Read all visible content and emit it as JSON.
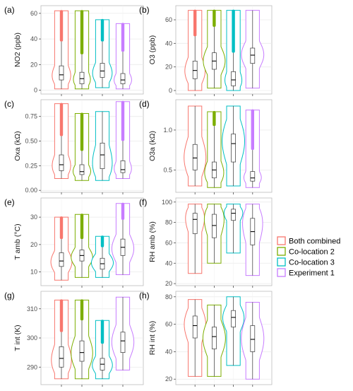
{
  "chart_data": {
    "type": "violin",
    "groups": [
      "Both combined",
      "Co-location 2",
      "Co-location 3",
      "Experiment 1"
    ],
    "colors": [
      "#f8766d",
      "#7cae00",
      "#00bfc4",
      "#c77cff"
    ],
    "legend": {
      "position": "right",
      "entries": [
        {
          "label": "Both combined",
          "color": "#f8766d"
        },
        {
          "label": "Co-location 2",
          "color": "#7cae00"
        },
        {
          "label": "Co-location 3",
          "color": "#00bfc4"
        },
        {
          "label": "Experiment 1",
          "color": "#c77cff"
        }
      ]
    },
    "panels": [
      {
        "id": "a",
        "label": "(a)",
        "ylabel": "NO2 (ppb)",
        "ylim": [
          -3,
          66
        ],
        "yticks": [
          "0",
          "20",
          "40",
          "60"
        ],
        "stats": [
          {
            "min": 1,
            "q1": 8,
            "median": 12,
            "q3": 19,
            "max": 62,
            "mode": 9,
            "outlier_from": 38
          },
          {
            "min": 1,
            "q1": 5,
            "median": 9,
            "q3": 14,
            "max": 62,
            "mode": 6,
            "outlier_from": 28
          },
          {
            "min": 2,
            "q1": 10,
            "median": 15,
            "q3": 21,
            "max": 55,
            "mode": 11,
            "outlier_from": 38
          },
          {
            "min": 1,
            "q1": 5,
            "median": 8,
            "q3": 13,
            "max": 52,
            "mode": 6,
            "outlier_from": 30
          }
        ]
      },
      {
        "id": "b",
        "label": "(b)",
        "ylabel": "O3 (ppb)",
        "ylim": [
          -3,
          72
        ],
        "yticks": [
          "0",
          "20",
          "40",
          "60"
        ],
        "stats": [
          {
            "min": 0,
            "q1": 10,
            "median": 17,
            "q3": 25,
            "max": 68,
            "mode": 14,
            "outlier_from": 46
          },
          {
            "min": 2,
            "q1": 18,
            "median": 25,
            "q3": 32,
            "max": 68,
            "mode": 24,
            "outlier_from": 54
          },
          {
            "min": 0,
            "q1": 4,
            "median": 9,
            "q3": 16,
            "max": 68,
            "mode": 5,
            "outlier_from": 32
          },
          {
            "min": 2,
            "q1": 23,
            "median": 30,
            "q3": 36,
            "max": 68,
            "mode": 30,
            "outlier_from": null
          }
        ]
      },
      {
        "id": "c",
        "label": "(c)",
        "ylabel": "Oxa (kΩ)",
        "ylim": [
          -0.02,
          0.92
        ],
        "yticks": [
          "0.00",
          "0.25",
          "0.50",
          "0.75"
        ],
        "stats": [
          {
            "min": 0.12,
            "q1": 0.2,
            "median": 0.26,
            "q3": 0.36,
            "max": 0.88,
            "mode": 0.21,
            "outlier_from": 0.55
          },
          {
            "min": 0.1,
            "q1": 0.16,
            "median": 0.19,
            "q3": 0.26,
            "max": 0.78,
            "mode": 0.17,
            "outlier_from": 0.4
          },
          {
            "min": 0.1,
            "q1": 0.22,
            "median": 0.36,
            "q3": 0.48,
            "max": 0.8,
            "mode": 0.2,
            "outlier_from": null
          },
          {
            "min": 0.12,
            "q1": 0.18,
            "median": 0.21,
            "q3": 0.3,
            "max": 0.9,
            "mode": 0.19,
            "outlier_from": 0.5
          }
        ]
      },
      {
        "id": "d",
        "label": "(d)",
        "ylabel": "O3a (kΩ)",
        "ylim": [
          0.22,
          1.38
        ],
        "yticks": [
          "0.5",
          "1.0"
        ],
        "stats": [
          {
            "min": 0.3,
            "q1": 0.5,
            "median": 0.65,
            "q3": 0.82,
            "max": 1.3,
            "mode": 0.62,
            "outlier_from": null
          },
          {
            "min": 0.28,
            "q1": 0.4,
            "median": 0.5,
            "q3": 0.6,
            "max": 1.23,
            "mode": 0.42,
            "outlier_from": 1.05
          },
          {
            "min": 0.3,
            "q1": 0.6,
            "median": 0.83,
            "q3": 0.95,
            "max": 1.3,
            "mode": 0.88,
            "outlier_from": null
          },
          {
            "min": 0.28,
            "q1": 0.36,
            "median": 0.4,
            "q3": 0.48,
            "max": 1.25,
            "mode": 0.38,
            "outlier_from": 0.75
          }
        ]
      },
      {
        "id": "e",
        "label": "(e)",
        "ylabel": "T amb (°C)",
        "ylim": [
          5,
          37
        ],
        "yticks": [
          "10",
          "20",
          "30"
        ],
        "stats": [
          {
            "min": 7,
            "q1": 12,
            "median": 14,
            "q3": 17,
            "max": 30,
            "mode": 13,
            "outlier_from": 22
          },
          {
            "min": 8,
            "q1": 14,
            "median": 16,
            "q3": 18,
            "max": 31,
            "mode": 15,
            "outlier_from": 22
          },
          {
            "min": 8,
            "q1": 11,
            "median": 13,
            "q3": 15,
            "max": 23,
            "mode": 13,
            "outlier_from": 19
          },
          {
            "min": 9,
            "q1": 16,
            "median": 19,
            "q3": 22,
            "max": 35,
            "mode": 18,
            "outlier_from": 29
          }
        ]
      },
      {
        "id": "f",
        "label": "(f)",
        "ylabel": "RH amb (%)",
        "ylim": [
          18,
          104
        ],
        "yticks": [
          "20",
          "40",
          "60",
          "80",
          "100"
        ],
        "stats": [
          {
            "min": 30,
            "q1": 69,
            "median": 83,
            "q3": 89,
            "max": 98,
            "mode": 90,
            "outlier_from": null
          },
          {
            "min": 40,
            "q1": 65,
            "median": 77,
            "q3": 88,
            "max": 98,
            "mode": 90,
            "outlier_from": null
          },
          {
            "min": 50,
            "q1": 82,
            "median": 89,
            "q3": 93,
            "max": 98,
            "mode": 92,
            "outlier_from": null
          },
          {
            "min": 28,
            "q1": 58,
            "median": 71,
            "q3": 84,
            "max": 98,
            "mode": 86,
            "outlier_from": null
          }
        ]
      },
      {
        "id": "g",
        "label": "(g)",
        "ylabel": "T int (K)",
        "ylim": [
          284,
          316
        ],
        "yticks": [
          "290",
          "300",
          "310"
        ],
        "stats": [
          {
            "min": 286,
            "q1": 290,
            "median": 293,
            "q3": 297,
            "max": 313,
            "mode": 291,
            "outlier_from": 302
          },
          {
            "min": 286,
            "q1": 292,
            "median": 295,
            "q3": 299,
            "max": 313,
            "mode": 294,
            "outlier_from": 306
          },
          {
            "min": 286,
            "q1": 289,
            "median": 291,
            "q3": 293,
            "max": 306,
            "mode": 290,
            "outlier_from": 298
          },
          {
            "min": 289,
            "q1": 295,
            "median": 299,
            "q3": 302,
            "max": 314,
            "mode": 298,
            "outlier_from": null
          }
        ]
      },
      {
        "id": "h",
        "label": "(h)",
        "ylabel": "RH int (%)",
        "ylim": [
          16,
          84
        ],
        "yticks": [
          "20",
          "40",
          "60",
          "80"
        ],
        "stats": [
          {
            "min": 22,
            "q1": 50,
            "median": 59,
            "q3": 66,
            "max": 78,
            "mode": 62,
            "outlier_from": null
          },
          {
            "min": 22,
            "q1": 42,
            "median": 51,
            "q3": 58,
            "max": 74,
            "mode": 50,
            "outlier_from": null
          },
          {
            "min": 30,
            "q1": 58,
            "median": 65,
            "q3": 70,
            "max": 80,
            "mode": 66,
            "outlier_from": null
          },
          {
            "min": 20,
            "q1": 40,
            "median": 49,
            "q3": 59,
            "max": 76,
            "mode": 50,
            "outlier_from": null
          }
        ]
      }
    ]
  }
}
